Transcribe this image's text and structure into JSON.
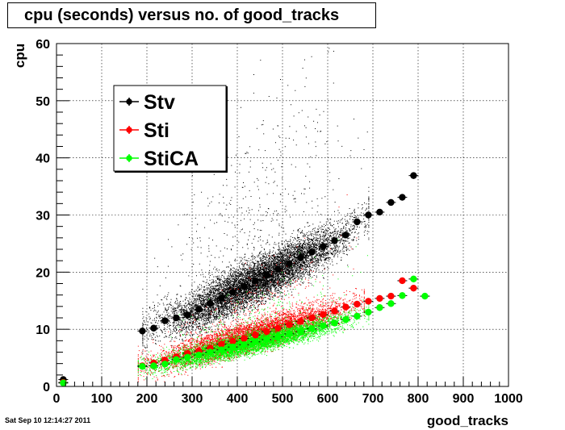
{
  "chart_data": {
    "type": "scatter",
    "title": "cpu (seconds) versus no. of good_tracks",
    "xlabel": "good_tracks",
    "ylabel": "cpu",
    "xlim": [
      0,
      1000
    ],
    "ylim": [
      0,
      60
    ],
    "xticks": [
      "0",
      "100",
      "200",
      "300",
      "400",
      "500",
      "600",
      "700",
      "800",
      "900",
      "1000"
    ],
    "yticks": [
      "0",
      "10",
      "20",
      "30",
      "40",
      "50",
      "60"
    ],
    "grid": true,
    "legend_position": "top-left",
    "series": [
      {
        "name": "Stv",
        "color": "#000000",
        "x": [
          15,
          190,
          215,
          240,
          265,
          290,
          315,
          340,
          365,
          390,
          415,
          440,
          465,
          490,
          515,
          540,
          565,
          590,
          615,
          640,
          665,
          690,
          715,
          740,
          765,
          790
        ],
        "y": [
          1.2,
          9.7,
          10.2,
          11.5,
          12.0,
          12.5,
          13.5,
          14.5,
          15.5,
          16.5,
          17.5,
          18.5,
          19.5,
          20.5,
          21.5,
          22.5,
          23.5,
          24.5,
          25.5,
          26.5,
          28.8,
          30.0,
          30.5,
          32.2,
          33.1,
          36.9
        ]
      },
      {
        "name": "Sti",
        "color": "#ff0000",
        "x": [
          15,
          190,
          215,
          240,
          265,
          290,
          315,
          340,
          365,
          390,
          415,
          440,
          465,
          490,
          515,
          540,
          565,
          590,
          615,
          640,
          665,
          690,
          715,
          740,
          765,
          790
        ],
        "y": [
          0.7,
          3.6,
          4.1,
          4.6,
          5.2,
          5.8,
          6.2,
          6.7,
          7.4,
          7.9,
          8.4,
          9.0,
          9.6,
          10.2,
          10.8,
          11.4,
          12.0,
          12.6,
          13.2,
          13.9,
          14.4,
          14.9,
          15.4,
          15.8,
          18.5,
          17.2
        ]
      },
      {
        "name": "StiCA",
        "color": "#00ff00",
        "x": [
          15,
          190,
          215,
          240,
          265,
          290,
          315,
          340,
          365,
          390,
          415,
          440,
          465,
          490,
          515,
          540,
          565,
          590,
          615,
          640,
          665,
          690,
          715,
          740,
          765,
          790,
          815
        ],
        "y": [
          0.6,
          3.5,
          3.6,
          3.9,
          4.7,
          5.1,
          5.5,
          6.0,
          6.4,
          6.9,
          7.3,
          7.8,
          8.2,
          8.7,
          9.2,
          9.6,
          10.1,
          10.6,
          11.1,
          11.7,
          12.3,
          13.0,
          13.8,
          14.5,
          15.9,
          18.8,
          15.8
        ]
      }
    ]
  },
  "timestamp": "Sat Sep 10 12:14:27 2011"
}
